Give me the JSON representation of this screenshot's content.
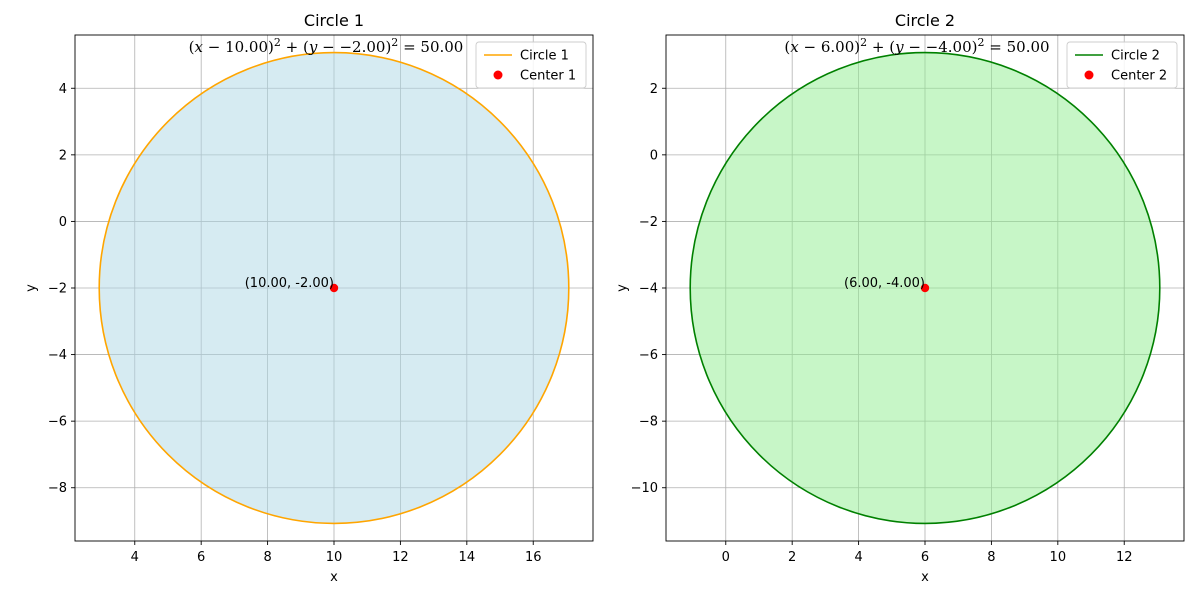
{
  "chart_data": [
    {
      "type": "scatter",
      "title": "Circle 1",
      "xlabel": "x",
      "ylabel": "y",
      "xlim": [
        2.2,
        17.8
      ],
      "ylim": [
        -9.6,
        5.6
      ],
      "xticks": [
        4,
        6,
        8,
        10,
        12,
        14,
        16
      ],
      "yticks": [
        -8,
        -6,
        -4,
        -2,
        0,
        2,
        4
      ],
      "grid": true,
      "legend_position": "top-right",
      "circle": {
        "center": [
          10.0,
          -2.0
        ],
        "radius_squared": 50.0
      },
      "equation": {
        "h": "10.00",
        "k": "-2.00",
        "r2": "50.00"
      },
      "center_label": "(10.00, -2.00)",
      "series": [
        {
          "name": "Circle 1",
          "kind": "line",
          "color": "#ffa500",
          "fill": "#add8e6"
        },
        {
          "name": "Center 1",
          "kind": "point",
          "color": "#ff0000",
          "x": 10.0,
          "y": -2.0
        }
      ]
    },
    {
      "type": "scatter",
      "title": "Circle 2",
      "xlabel": "x",
      "ylabel": "y",
      "xlim": [
        -1.8,
        13.8
      ],
      "ylim": [
        -11.6,
        3.6
      ],
      "xticks": [
        0,
        2,
        4,
        6,
        8,
        10,
        12
      ],
      "yticks": [
        -10,
        -8,
        -6,
        -4,
        -2,
        0,
        2
      ],
      "grid": true,
      "legend_position": "top-right",
      "circle": {
        "center": [
          6.0,
          -4.0
        ],
        "radius_squared": 50.0
      },
      "equation": {
        "h": "6.00",
        "k": "-4.00",
        "r2": "50.00"
      },
      "center_label": "(6.00, -4.00)",
      "series": [
        {
          "name": "Circle 2",
          "kind": "line",
          "color": "#008000",
          "fill": "#90ee90"
        },
        {
          "name": "Center 2",
          "kind": "point",
          "color": "#ff0000",
          "x": 6.0,
          "y": -4.0
        }
      ]
    }
  ]
}
